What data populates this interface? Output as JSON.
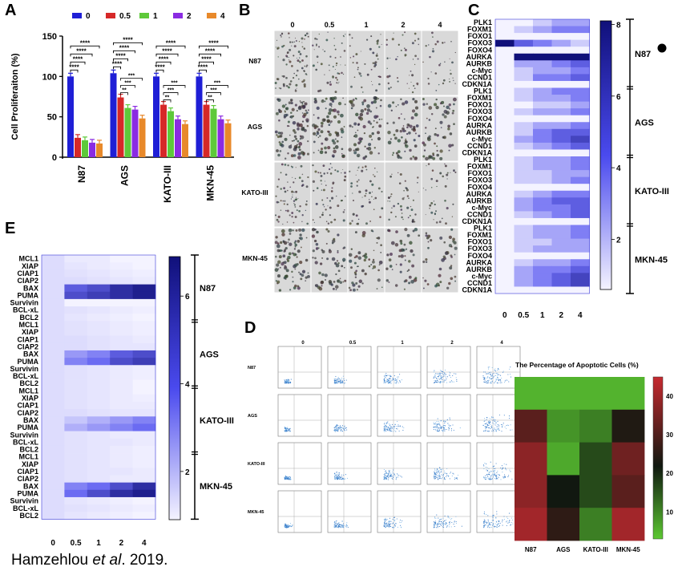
{
  "caption": {
    "author": "Hamzehlou ",
    "etal": "et al",
    "year": ". 2019."
  },
  "panels": {
    "a": "A",
    "b": "B",
    "c": "C",
    "d": "D",
    "e": "E"
  },
  "colors": {
    "bar0": "#1f1fd6",
    "bar05": "#d62828",
    "bar1": "#5ec93a",
    "bar2": "#8a2be2",
    "bar4": "#e8892a",
    "heatHigh": "#1a1ad1",
    "heatLow": "#f2f2ff",
    "apLow": "#5cc832",
    "apMid": "#101810",
    "apHigh": "#c02c32"
  },
  "panelA": {
    "chart_data": {
      "type": "bar",
      "categories": [
        "N87",
        "AGS",
        "KATO-III",
        "MKN-45"
      ],
      "series": [
        {
          "name": "0",
          "values": [
            100,
            104,
            100,
            100
          ]
        },
        {
          "name": "0.5",
          "values": [
            24,
            74,
            65,
            65
          ]
        },
        {
          "name": "1",
          "values": [
            21,
            61,
            57,
            60
          ]
        },
        {
          "name": "2",
          "values": [
            18,
            59,
            47,
            47
          ]
        },
        {
          "name": "4",
          "values": [
            17,
            48,
            41,
            42
          ]
        }
      ],
      "ylabel": "Cell Proliferaiton (%)",
      "ylim": [
        0,
        150
      ],
      "yticks": [
        "0",
        "50",
        "100",
        "150"
      ],
      "sig": "****",
      "sig3": "***",
      "sig2": "**"
    }
  },
  "panelB": {
    "cols": [
      "0",
      "0.5",
      "1",
      "2",
      "4"
    ],
    "rows": [
      "N87",
      "AGS",
      "KATO-III",
      "MKN-45"
    ],
    "density": [
      [
        0.55,
        0.35,
        0.3,
        0.28,
        0.22
      ],
      [
        0.7,
        0.55,
        0.48,
        0.42,
        0.38
      ],
      [
        0.45,
        0.38,
        0.32,
        0.28,
        0.25
      ],
      [
        0.6,
        0.42,
        0.36,
        0.3,
        0.28
      ]
    ]
  },
  "panelC": {
    "chart_data": {
      "type": "heatmap",
      "genes": [
        "PLK1",
        "FOXM1",
        "FOXO1",
        "FOXO3",
        "FOXO4",
        "AURKA",
        "AURKB",
        "c-Myc",
        "CCND1",
        "CDKN1A"
      ],
      "groups": [
        "N87",
        "AGS",
        "KATO-III",
        "MKN-45"
      ],
      "cols": [
        "0",
        "0.5",
        "1",
        "2",
        "4"
      ],
      "values": [
        [
          [
            1,
            1,
            2,
            3,
            3
          ],
          [
            1,
            2,
            3,
            4,
            4
          ],
          [
            1,
            1,
            1,
            1,
            1
          ],
          [
            8,
            5,
            4,
            3,
            2
          ],
          [
            1,
            1,
            1,
            1,
            1
          ],
          [
            1,
            8,
            8,
            8,
            8
          ],
          [
            1,
            3,
            3,
            4,
            5
          ],
          [
            1,
            2,
            3,
            3,
            4
          ],
          [
            1,
            2,
            4,
            4,
            5
          ],
          [
            1,
            1,
            1,
            1,
            1
          ]
        ],
        [
          [
            1,
            2,
            3,
            4,
            4
          ],
          [
            1,
            2,
            3,
            3,
            4
          ],
          [
            1,
            1,
            2,
            2,
            3
          ],
          [
            1,
            2,
            3,
            3,
            4
          ],
          [
            1,
            1,
            1,
            1,
            1
          ],
          [
            1,
            2,
            3,
            3,
            4
          ],
          [
            1,
            2,
            4,
            5,
            5
          ],
          [
            1,
            3,
            4,
            5,
            6
          ],
          [
            1,
            2,
            3,
            4,
            5
          ],
          [
            1,
            1,
            1,
            1,
            1
          ]
        ],
        [
          [
            1,
            2,
            3,
            3,
            4
          ],
          [
            1,
            2,
            3,
            3,
            4
          ],
          [
            1,
            2,
            2,
            3,
            3
          ],
          [
            1,
            2,
            2,
            3,
            4
          ],
          [
            1,
            1,
            1,
            1,
            1
          ],
          [
            1,
            2,
            3,
            4,
            4
          ],
          [
            1,
            3,
            4,
            5,
            5
          ],
          [
            1,
            3,
            4,
            4,
            5
          ],
          [
            1,
            2,
            3,
            4,
            5
          ],
          [
            1,
            1,
            1,
            1,
            1
          ]
        ],
        [
          [
            1,
            2,
            3,
            3,
            4
          ],
          [
            1,
            2,
            3,
            3,
            4
          ],
          [
            1,
            2,
            2,
            3,
            3
          ],
          [
            1,
            2,
            3,
            3,
            3
          ],
          [
            1,
            1,
            1,
            1,
            1
          ],
          [
            1,
            2,
            3,
            3,
            4
          ],
          [
            1,
            3,
            4,
            4,
            5
          ],
          [
            1,
            3,
            4,
            5,
            6
          ],
          [
            1,
            3,
            4,
            5,
            6
          ],
          [
            1,
            1,
            1,
            1,
            1
          ]
        ]
      ],
      "colorbar": [
        "8",
        "6",
        "4",
        "2"
      ],
      "vmin": 1,
      "vmax": 8
    }
  },
  "panelD": {
    "cols": [
      "0",
      "0.5",
      "1",
      "2",
      "4"
    ],
    "rows": [
      "N87",
      "AGS",
      "KATO-III",
      "MKN-45"
    ],
    "heat_title": "The Percentage of Apoptotic Cells (%)",
    "chart_data": {
      "type": "heatmap",
      "rows": [
        "0",
        "0.5",
        "1",
        "2",
        "4"
      ],
      "cols": [
        "N87",
        "AGS",
        "KATO-III",
        "MKN-45"
      ],
      "values": [
        [
          5,
          5,
          5,
          5
        ],
        [
          30,
          8,
          10,
          22
        ],
        [
          37,
          6,
          15,
          33
        ],
        [
          37,
          20,
          15,
          30
        ],
        [
          40,
          24,
          10,
          40
        ]
      ],
      "colorbar": [
        "40",
        "30",
        "20",
        "10"
      ],
      "vmin": 3,
      "vmax": 45
    }
  },
  "panelE": {
    "chart_data": {
      "type": "heatmap",
      "genes": [
        "MCL1",
        "XIAP",
        "CIAP1",
        "CIAP2",
        "BAX",
        "PUMA",
        "Survivin",
        "BCL-xL",
        "BCL2"
      ],
      "groups": [
        "N87",
        "AGS",
        "KATO-III",
        "MKN-45"
      ],
      "cols": [
        "0",
        "0.5",
        "1",
        "2",
        "4"
      ],
      "values": [
        [
          [
            1.5,
            1.2,
            1.2,
            1,
            1
          ],
          [
            1.5,
            1.3,
            1.2,
            1.1,
            1
          ],
          [
            1.5,
            1.4,
            1.3,
            1.2,
            1.1
          ],
          [
            1.5,
            1.5,
            1.4,
            1.3,
            1.2
          ],
          [
            1.5,
            4.5,
            5,
            6,
            6.5
          ],
          [
            1.5,
            5,
            5.5,
            6,
            6.5
          ],
          [
            1.5,
            1,
            1,
            1,
            1
          ],
          [
            1.5,
            1.4,
            1.3,
            1.2,
            1.1
          ],
          [
            1.5,
            1.3,
            1.2,
            1.1,
            1
          ]
        ],
        [
          [
            1.5,
            1.4,
            1.3,
            1.2,
            1.1
          ],
          [
            1.5,
            1.4,
            1.3,
            1.2,
            1.1
          ],
          [
            1.5,
            1.5,
            1.4,
            1.3,
            1.2
          ],
          [
            1.5,
            1.5,
            1.4,
            1.3,
            1.3
          ],
          [
            1.5,
            3,
            3.5,
            4.5,
            5
          ],
          [
            1.5,
            3.5,
            4,
            5,
            5.5
          ],
          [
            1.5,
            1.4,
            1.3,
            1.2,
            1.1
          ],
          [
            1.5,
            1.4,
            1.3,
            1.2,
            1.1
          ],
          [
            1.5,
            1.4,
            1.3,
            1.2,
            1
          ]
        ],
        [
          [
            1.5,
            1.4,
            1.3,
            1.2,
            1
          ],
          [
            1.5,
            1.4,
            1.3,
            1.2,
            1.1
          ],
          [
            1.5,
            1.4,
            1.3,
            1.2,
            1.2
          ],
          [
            1.5,
            1.5,
            1.4,
            1.3,
            1.3
          ],
          [
            1.5,
            2,
            2.5,
            3,
            3.5
          ],
          [
            1.5,
            2.5,
            3,
            3.5,
            4
          ],
          [
            1.5,
            1.4,
            1.3,
            1.2,
            1.2
          ],
          [
            1.5,
            1.4,
            1.3,
            1.3,
            1.2
          ],
          [
            1.5,
            1.4,
            1.3,
            1.2,
            1.1
          ]
        ],
        [
          [
            1.5,
            1.4,
            1.3,
            1.2,
            1.1
          ],
          [
            1.5,
            1.4,
            1.3,
            1.2,
            1.1
          ],
          [
            1.5,
            1.4,
            1.3,
            1.3,
            1.2
          ],
          [
            1.5,
            1.4,
            1.3,
            1.2,
            1.2
          ],
          [
            1.5,
            3.5,
            4,
            5,
            6
          ],
          [
            1.5,
            4,
            5,
            6,
            6.5
          ],
          [
            1.5,
            1.3,
            1.2,
            1.1,
            1
          ],
          [
            1.5,
            1.4,
            1.3,
            1.2,
            1.1
          ],
          [
            1.5,
            1.3,
            1.2,
            1.1,
            1
          ]
        ]
      ],
      "colorbar": [
        "6",
        "4",
        "2"
      ],
      "vmin": 1,
      "vmax": 7
    }
  }
}
